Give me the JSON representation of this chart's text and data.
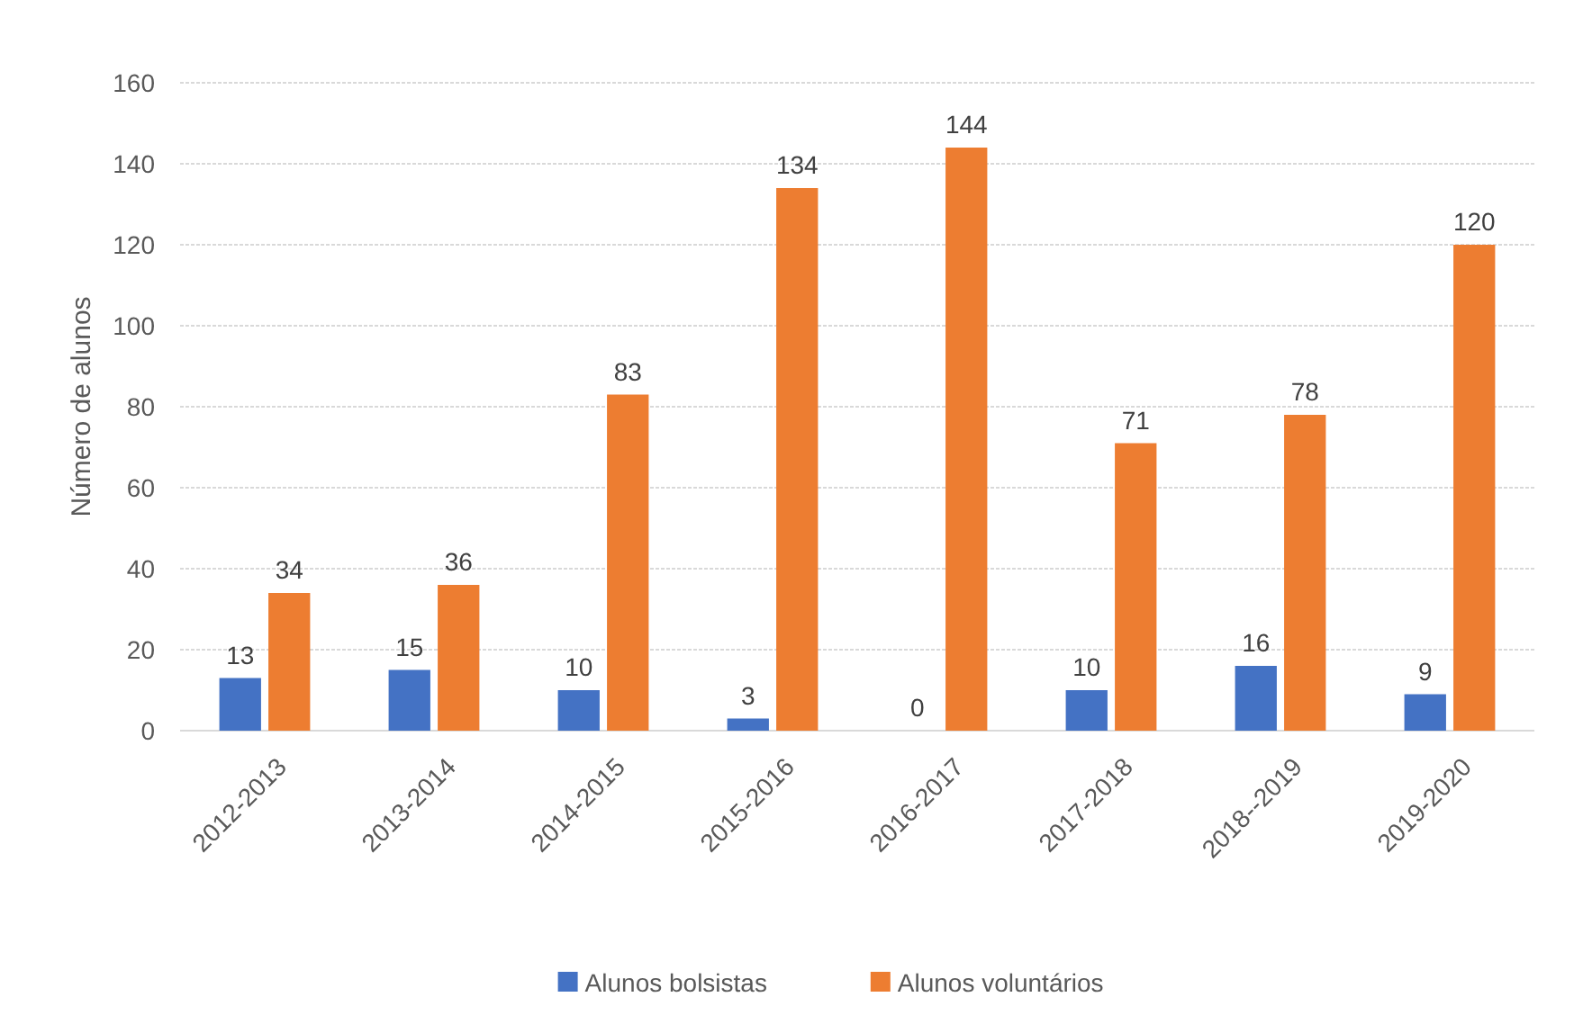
{
  "chart_data": {
    "type": "bar",
    "ylabel": "Número de alunos",
    "categories": [
      "2012-2013",
      "2013-2014",
      "2014-2015",
      "2015-2016",
      "2016-2017",
      "2017-2018",
      "2018--2019",
      "2019-2020"
    ],
    "series": [
      {
        "name": "Alunos bolsistas",
        "color": "#4472c4",
        "values": [
          13,
          15,
          10,
          3,
          0,
          10,
          16,
          9
        ]
      },
      {
        "name": "Alunos voluntários",
        "color": "#ed7d31",
        "values": [
          34,
          36,
          83,
          134,
          144,
          71,
          78,
          120
        ]
      }
    ],
    "ylim": [
      0,
      160
    ],
    "yticks": [
      0,
      20,
      40,
      60,
      80,
      100,
      120,
      140,
      160
    ],
    "grid": "y",
    "legend": "bottom",
    "data_labels": true
  }
}
